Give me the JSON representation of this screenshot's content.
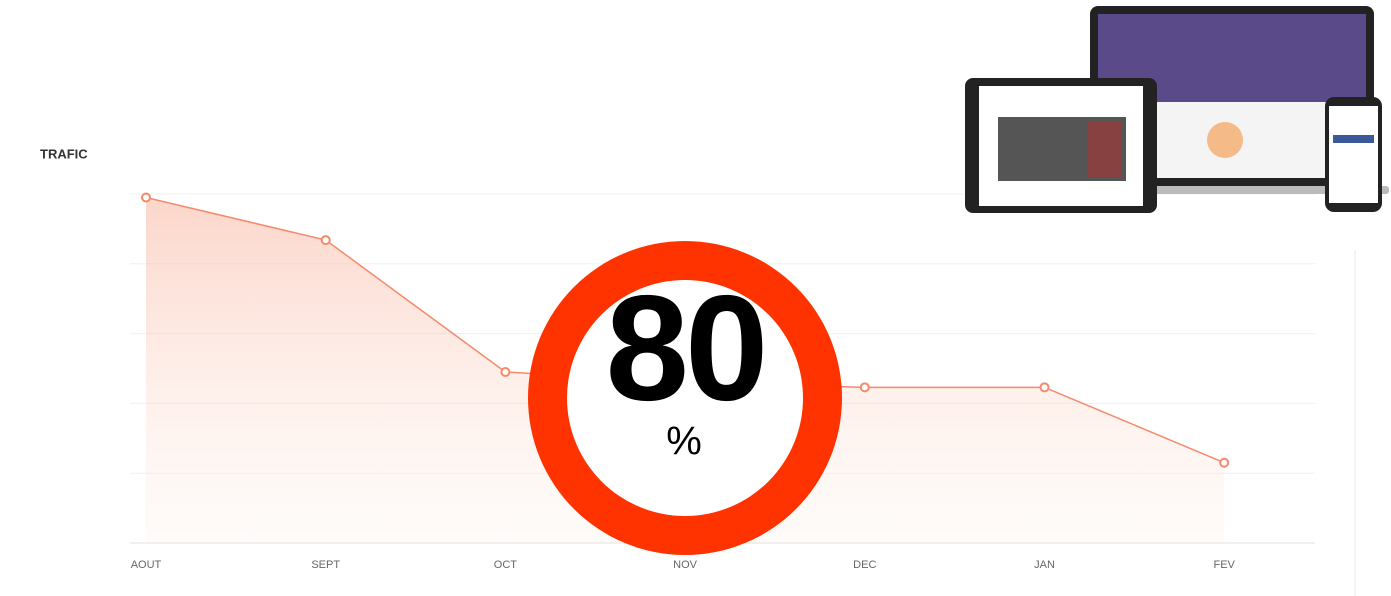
{
  "chart_data": {
    "type": "line",
    "title": "TRAFIC",
    "categories": [
      "AOUT",
      "SEPT",
      "OCT",
      "NOV",
      "DEC",
      "JAN",
      "FEV"
    ],
    "values": [
      4.95,
      4.34,
      2.45,
      2.3,
      2.23,
      2.23,
      1.15
    ],
    "color": "#f58a6a",
    "ylim": [
      0,
      5
    ],
    "yticks": [
      0,
      1,
      2,
      3,
      4,
      5
    ],
    "grid": true,
    "badge": {
      "value": "80",
      "unit": "%"
    }
  }
}
